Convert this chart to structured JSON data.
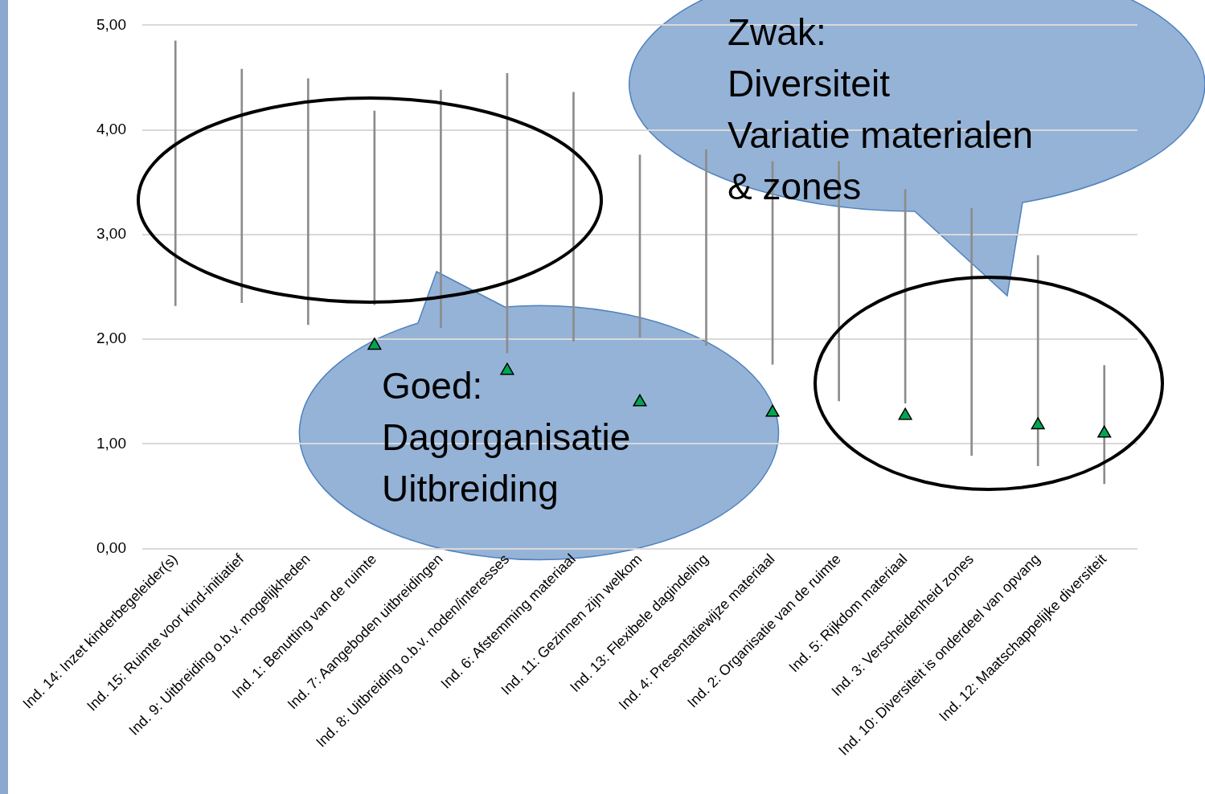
{
  "chart_data": {
    "type": "bar",
    "categories": [
      "Ind. 14: Inzet kinderbegeleider(s)",
      "Ind. 15: Ruimte voor kind-initiatief",
      "Ind. 9: Uitbreiding o.b.v. mogelijkheden",
      "Ind. 1: Benutting van de ruimte",
      "Ind. 7: Aangeboden uitbreidingen",
      "Ind. 8: Uitbreiding o.b.v. noden/interesses",
      "Ind. 6: Afstemming materiaal",
      "Ind. 11: Gezinnen zijn welkom",
      "Ind. 13: Flexibele dagindeling",
      "Ind. 4: Presentatiewijze materiaal",
      "Ind. 2: Organisatie van de ruimte",
      "Ind. 5: Rijkdom materiaal",
      "Ind. 3: Verscheidenheid zones",
      "Ind. 10: Diversiteit is onderdeel van opvang",
      "Ind. 12: Maatschappelijke diversiteit"
    ],
    "series": [
      {
        "color": "#8c8c8c",
        "base": [
          2.32,
          2.35,
          2.14,
          2.33,
          2.11,
          1.87,
          1.98,
          2.02,
          1.94,
          1.76,
          1.41,
          1.39,
          0.89,
          0.79,
          0.62
        ],
        "values": [
          2.53,
          2.23,
          2.35,
          1.85,
          2.27,
          2.67,
          2.38,
          1.74,
          1.87,
          1.94,
          2.29,
          2.04,
          2.36,
          2.01,
          1.13
        ]
      },
      {
        "type": "scatter",
        "color": "#00a651",
        "marker": "triangle",
        "values": [
          null,
          null,
          null,
          1.94,
          null,
          1.7,
          null,
          1.4,
          null,
          1.3,
          null,
          1.27,
          null,
          1.18,
          1.1
        ]
      }
    ],
    "ylim": [
      0,
      5
    ],
    "yticks": [
      {
        "value": 0,
        "label": "0,00"
      },
      {
        "value": 1,
        "label": "1,00"
      },
      {
        "value": 2,
        "label": "2,00"
      },
      {
        "value": 3,
        "label": "3,00"
      },
      {
        "value": 4,
        "label": "4,00"
      },
      {
        "value": 5,
        "label": "5,00"
      }
    ],
    "grid": "y",
    "legend": false,
    "annotations": [
      "Zwak:\nDiversiteit\nVariatie materialen\n& zones",
      "Goed:\nDagorganisatie\nUitbreiding"
    ]
  }
}
